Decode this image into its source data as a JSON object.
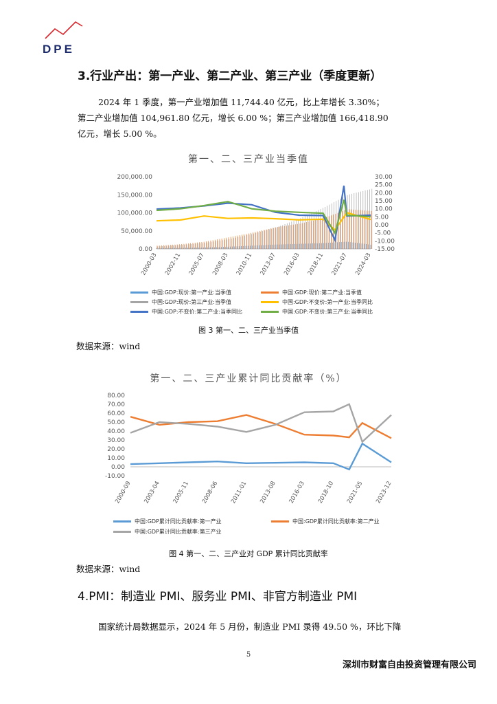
{
  "header": {
    "logo_text": "DPE",
    "section3_title": "3.行业产出：第一产业、第二产业、第三产业（季度更新）",
    "para1_lines": [
      "2024 年 1 季度，第一产业增加值 11,744.40 亿元，比上年增长 3.30%；",
      "第二产业增加值 104,961.80 亿元，增长 6.00 %；第三产业增加值 166,418.90",
      "亿元，增长 5.00 %。"
    ]
  },
  "figure3": {
    "caption": "图 3 第一、二、三产业当季值",
    "source": "数据来源：wind"
  },
  "figure4": {
    "caption": "图 4 第一、二、三产业对 GDP 累计同比贡献率",
    "source": "数据来源：wind"
  },
  "section4": {
    "title": "4.PMI：制造业 PMI、服务业 PMI、非官方制造业 PMI",
    "para": "国家统计局数据显示，2024 年 5 月份，制造业 PMI 录得 49.50 %，环比下降"
  },
  "footer": {
    "page_number": "5",
    "company": "深圳市财富自由投资管理有限公司"
  },
  "colors": {
    "blue": "#5b9bd5",
    "orange": "#ed7d31",
    "gray": "#a5a5a5",
    "yellow": "#ffc000",
    "darkblue": "#4472c4",
    "green": "#70ad47"
  },
  "chart_data": [
    {
      "type": "line",
      "title": "第一、二、三产业当季值",
      "x_ticks": [
        "2000-03",
        "2002-11",
        "2005-07",
        "2008-03",
        "2010-11",
        "2013-07",
        "2016-03",
        "2018-11",
        "2021-07",
        "2024-03"
      ],
      "left_axis": {
        "ticks": [
          "0.00",
          "50,000.00",
          "100,000.00",
          "150,000.00",
          "200,000.00"
        ],
        "ylim": [
          0,
          200000
        ]
      },
      "right_axis": {
        "ticks": [
          "-15.00",
          "-10.00",
          "-5.00",
          "0.00",
          "5.00",
          "10.00",
          "15.00",
          "20.00",
          "25.00",
          "30.00"
        ],
        "ylim": [
          -15,
          30
        ]
      },
      "legend": [
        "中国:GDP:现价:第一产业:当季值",
        "中国:GDP:现价:第二产业:当季值",
        "中国:GDP:现价:第三产业:当季值",
        "中国:GDP:不变价:第一产业:当季同比",
        "中国:GDP:不变价:第二产业:当季同比",
        "中国:GDP:不变价:第三产业:当季同比"
      ],
      "series": [
        {
          "name": "中国:GDP:现价:第一产业:当季值",
          "kind": "bar",
          "axis": "left",
          "x": [
            "2000-03",
            "2002-11",
            "2005-07",
            "2008-03",
            "2010-11",
            "2013-07",
            "2016-03",
            "2018-11",
            "2021-07",
            "2024-03"
          ],
          "values": [
            2500,
            3000,
            4000,
            6000,
            9000,
            12000,
            14000,
            16000,
            20000,
            11744
          ]
        },
        {
          "name": "中国:GDP:现价:第二产业:当季值",
          "kind": "bar",
          "axis": "left",
          "x": [
            "2000-03",
            "2002-11",
            "2005-07",
            "2008-03",
            "2010-11",
            "2013-07",
            "2016-03",
            "2018-11",
            "2021-07",
            "2024-03"
          ],
          "values": [
            9000,
            13000,
            20000,
            32000,
            45000,
            60000,
            70000,
            85000,
            110000,
            104962
          ]
        },
        {
          "name": "中国:GDP:现价:第三产业:当季值",
          "kind": "bar",
          "axis": "left",
          "x": [
            "2000-03",
            "2002-11",
            "2005-07",
            "2008-03",
            "2010-11",
            "2013-07",
            "2016-03",
            "2018-11",
            "2021-07",
            "2024-03"
          ],
          "values": [
            7000,
            11000,
            17000,
            27000,
            42000,
            60000,
            85000,
            115000,
            150000,
            166419
          ]
        },
        {
          "name": "中国:GDP:不变价:第一产业:当季同比",
          "kind": "line",
          "axis": "right",
          "x": [
            "2000-03",
            "2002-11",
            "2005-07",
            "2008-03",
            "2010-11",
            "2013-07",
            "2016-03",
            "2018-11",
            "2020-03",
            "2021-07",
            "2024-03"
          ],
          "values": [
            2.5,
            3.0,
            5.5,
            4.0,
            4.3,
            3.8,
            3.1,
            3.5,
            -3.2,
            7.6,
            3.3
          ]
        },
        {
          "name": "中国:GDP:不变价:第二产业:当季同比",
          "kind": "line",
          "axis": "right",
          "x": [
            "2000-03",
            "2002-11",
            "2005-07",
            "2008-03",
            "2010-11",
            "2013-07",
            "2016-03",
            "2018-11",
            "2020-03",
            "2021-03",
            "2021-07",
            "2024-03"
          ],
          "values": [
            9.8,
            10.5,
            11.8,
            13.5,
            12.5,
            7.8,
            6.0,
            5.8,
            -9.6,
            24.4,
            5.5,
            6.0
          ]
        },
        {
          "name": "中国:GDP:不变价:第三产业:当季同比",
          "kind": "line",
          "axis": "right",
          "x": [
            "2000-03",
            "2002-11",
            "2005-07",
            "2008-03",
            "2010-11",
            "2013-07",
            "2016-03",
            "2018-11",
            "2020-03",
            "2021-03",
            "2021-07",
            "2024-03"
          ],
          "values": [
            9.0,
            10.0,
            12.0,
            14.5,
            10.0,
            8.5,
            7.8,
            7.2,
            -5.2,
            15.6,
            6.0,
            5.0
          ]
        }
      ]
    },
    {
      "type": "line",
      "title": "第一、二、三产业累计同比贡献率（%）",
      "x_ticks": [
        "2000-09",
        "2003-04",
        "2005-11",
        "2008-06",
        "2011-01",
        "2013-08",
        "2016-03",
        "2018-10",
        "2021-05",
        "2023-12"
      ],
      "ylim": [
        -10,
        80
      ],
      "y_ticks": [
        "-10.00",
        "0.00",
        "10.00",
        "20.00",
        "30.00",
        "40.00",
        "50.00",
        "60.00",
        "70.00",
        "80.00"
      ],
      "legend": [
        "中国:GDP累计同比贡献率:第一产业",
        "中国:GDP累计同比贡献率:第二产业",
        "中国:GDP累计同比贡献率:第三产业"
      ],
      "series": [
        {
          "name": "中国:GDP累计同比贡献率:第一产业",
          "x": [
            "2000-09",
            "2003-04",
            "2005-11",
            "2008-06",
            "2011-01",
            "2013-08",
            "2016-03",
            "2018-10",
            "2020-03",
            "2021-05",
            "2023-12"
          ],
          "values": [
            3.0,
            4.0,
            5.0,
            6.0,
            4.0,
            4.5,
            5.0,
            4.0,
            -3.0,
            26.0,
            5.0
          ]
        },
        {
          "name": "中国:GDP累计同比贡献率:第二产业",
          "x": [
            "2000-09",
            "2003-04",
            "2005-11",
            "2008-06",
            "2011-01",
            "2013-08",
            "2016-03",
            "2018-10",
            "2020-03",
            "2021-05",
            "2023-12"
          ],
          "values": [
            56.0,
            47.0,
            50.0,
            51.0,
            58.0,
            48.0,
            36.0,
            35.0,
            33.0,
            49.0,
            32.0
          ]
        },
        {
          "name": "中国:GDP累计同比贡献率:第三产业",
          "x": [
            "2000-09",
            "2003-04",
            "2005-11",
            "2008-06",
            "2011-01",
            "2013-08",
            "2016-03",
            "2018-10",
            "2020-03",
            "2021-05",
            "2023-12"
          ],
          "values": [
            38.0,
            50.0,
            48.0,
            45.0,
            39.0,
            47.0,
            61.0,
            62.0,
            70.0,
            28.0,
            58.0
          ]
        }
      ]
    }
  ]
}
